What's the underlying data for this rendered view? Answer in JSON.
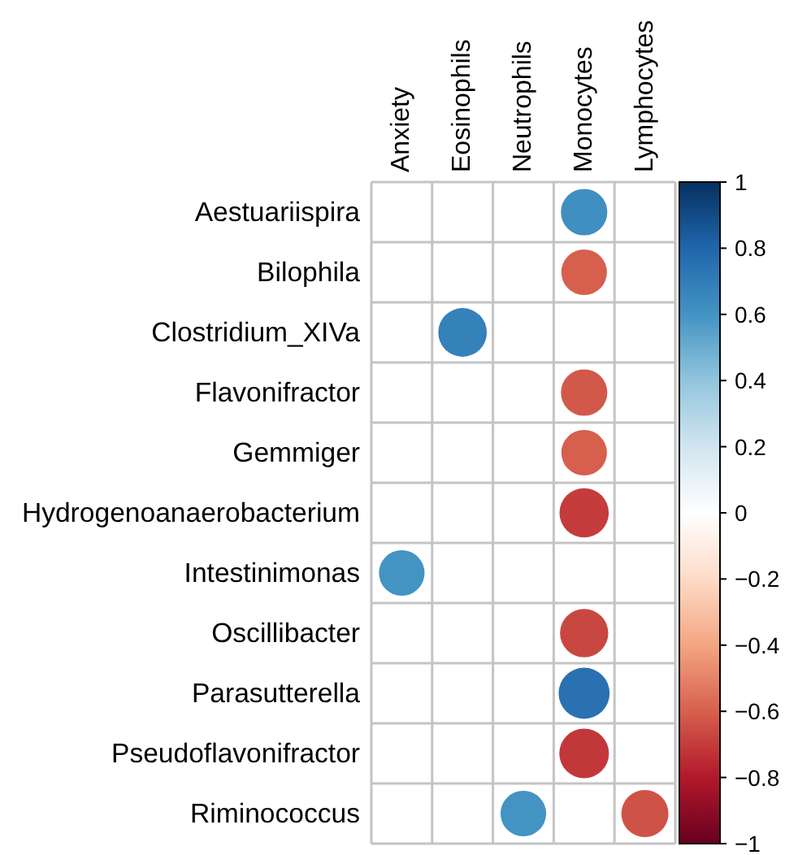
{
  "chart_data": {
    "type": "heatmap",
    "marker": "circle",
    "grid": true,
    "categories": [
      "Anxiety",
      "Eosinophils",
      "Neutrophils",
      "Monocytes",
      "Lymphocytes"
    ],
    "y_categories": [
      "Aestuariispira",
      "Bilophila",
      "Clostridium_XIVa",
      "Flavonifractor",
      "Gemmiger",
      "Hydrogenoanaerobacterium",
      "Intestinimonas",
      "Oscillibacter",
      "Parasutterella",
      "Pseudoflavonifractor",
      "Riminococcus"
    ],
    "cells": [
      [
        null,
        null,
        null,
        0.62,
        null
      ],
      [
        null,
        null,
        null,
        -0.6,
        null
      ],
      [
        null,
        0.68,
        null,
        null,
        null
      ],
      [
        null,
        null,
        null,
        -0.62,
        null
      ],
      [
        null,
        null,
        null,
        -0.6,
        null
      ],
      [
        null,
        null,
        null,
        -0.7,
        null
      ],
      [
        0.6,
        null,
        null,
        null,
        null
      ],
      [
        null,
        null,
        null,
        -0.67,
        null
      ],
      [
        null,
        null,
        null,
        0.75,
        null
      ],
      [
        null,
        null,
        null,
        -0.71,
        null
      ],
      [
        null,
        null,
        0.6,
        null,
        -0.64
      ]
    ],
    "clim": [
      -1,
      1
    ],
    "cticks": [
      -1,
      -0.8,
      -0.6,
      -0.4,
      -0.2,
      0,
      0.2,
      0.4,
      0.6,
      0.8,
      1
    ]
  }
}
